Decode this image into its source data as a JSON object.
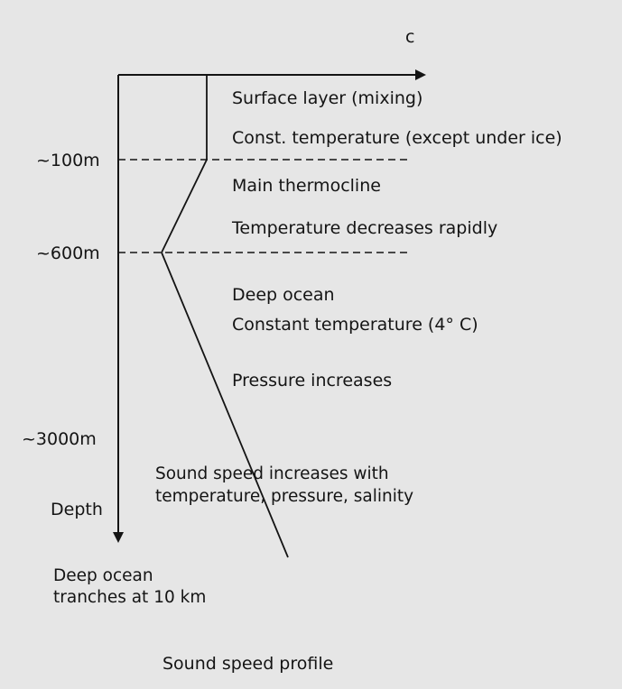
{
  "axis": {
    "x_label": "c",
    "y_label": "Depth"
  },
  "depth_ticks": [
    "~100m",
    "~600m",
    "~3000m"
  ],
  "layers": {
    "surface_title": "Surface layer (mixing)",
    "surface_desc": "Const. temperature (except under ice)",
    "thermocline_title": "Main thermocline",
    "thermocline_desc": "Temperature decreases rapidly",
    "deep_title": "Deep ocean",
    "deep_desc": "Constant temperature (4° C)",
    "pressure_note": "Pressure increases"
  },
  "sound_note": {
    "line1": "Sound speed increases with",
    "line2": "temperature, pressure, salinity"
  },
  "trench_note": {
    "line1": "Deep ocean",
    "line2": "tranches at 10 km"
  },
  "caption": "Sound speed profile",
  "colors": {
    "background": "#e6e6e6",
    "ink": "#141414"
  }
}
